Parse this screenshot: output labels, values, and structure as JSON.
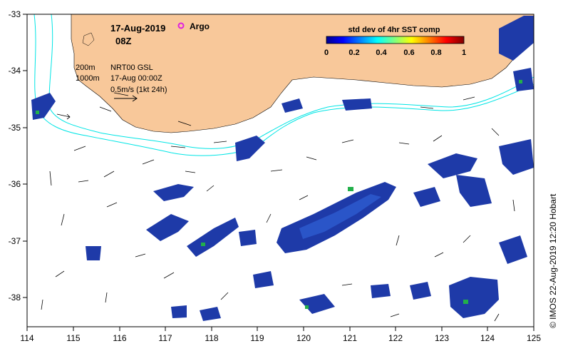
{
  "map": {
    "date": "17-Aug-2019",
    "hour": "08Z",
    "argo_label": "Argo",
    "colorbar": {
      "title": "std dev of 4hr SST comp",
      "ticks": [
        "0",
        "0.2",
        "0.4",
        "0.6",
        "0.8",
        "1"
      ],
      "min": 0,
      "max": 1
    },
    "contour_labels": {
      "c200": "200m",
      "c1000": "1000m"
    },
    "product": "NRT00 GSL",
    "product_time": "17-Aug 00:00Z",
    "vector_scale": "0.5m/s (1kt 24h)",
    "credit": "© IMOS 22-Aug-2019 12:20 Hobart",
    "lon_ticks": [
      "114",
      "115",
      "116",
      "117",
      "118",
      "119",
      "120",
      "121",
      "122",
      "123",
      "124",
      "125"
    ],
    "lat_ticks": [
      "-33",
      "-34",
      "-35",
      "-36",
      "-37",
      "-38"
    ],
    "colors": {
      "land": "#F8C89A",
      "contour": "#00E5E5",
      "argo": "#E020E0",
      "sst_low": "#1E3AA8"
    }
  }
}
